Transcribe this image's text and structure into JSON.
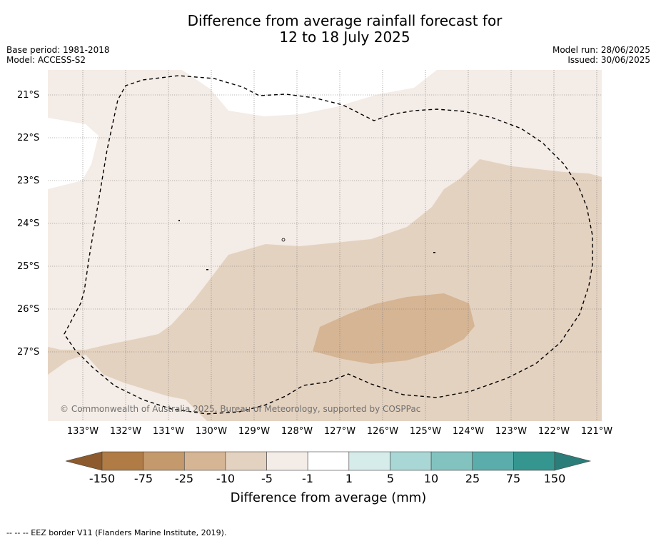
{
  "title": {
    "line1": "Difference from average rainfall forecast for",
    "line2": "12 to 18 July 2025"
  },
  "meta_left": {
    "base_period": "Base period: 1981-2018",
    "model": "Model: ACCESS-S2"
  },
  "meta_right": {
    "model_run": "Model run: 28/06/2025",
    "issued": "Issued: 30/06/2025"
  },
  "latitude_labels": [
    "21°S",
    "22°S",
    "23°S",
    "24°S",
    "25°S",
    "26°S",
    "27°S"
  ],
  "longitude_labels": [
    "133°W",
    "132°W",
    "131°W",
    "130°W",
    "129°W",
    "128°W",
    "127°W",
    "126°W",
    "125°W",
    "124°W",
    "123°W",
    "122°W",
    "121°W"
  ],
  "credit": "© Commonwealth of Australia 2025, Bureau of Meteorology, supported by COSPPac",
  "colorbar": {
    "ticks": [
      "-150",
      "-75",
      "-25",
      "-10",
      "-5",
      "-1",
      "1",
      "5",
      "10",
      "25",
      "75",
      "150"
    ],
    "colors": [
      "#8c5a2c",
      "#b07b45",
      "#c4996c",
      "#d6b594",
      "#e4d2c0",
      "#f4ece6",
      "#ffffff",
      "#d6ecea",
      "#a9d7d5",
      "#82c2bf",
      "#5aadaa",
      "#35968f",
      "#2a7d78"
    ],
    "label": "Difference from average (mm)"
  },
  "footer": "--  --  -- EEZ border V11 (Flanders Marine Institute, 2019)."
}
